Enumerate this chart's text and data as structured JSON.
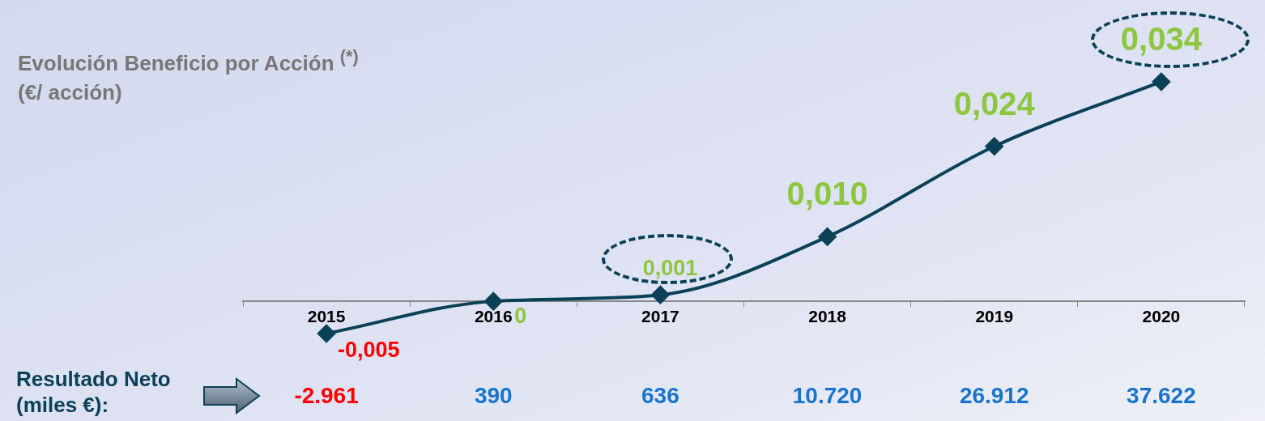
{
  "chart_data": {
    "type": "line",
    "title": "Evolución Beneficio por Acción $^{(*)}$",
    "subtitle": "(€/ acción)",
    "categories": [
      "2015",
      "2016",
      "2017",
      "2018",
      "2019",
      "2020"
    ],
    "series": [
      {
        "color": "#0b4157",
        "values": [
          -0.005,
          0,
          0.001,
          0.01,
          0.024,
          0.034
        ],
        "value_labels": [
          "-0,005",
          "0",
          "0,001",
          "0,010",
          "0,024",
          "0,034"
        ]
      }
    ],
    "grid": false,
    "legend": false,
    "marker": "diamond",
    "line_style": "solid",
    "annotations": [
      "Resultado Neto (miles €):",
      "-2.961",
      "390",
      "636",
      "10.720",
      "26.912",
      "37.622"
    ]
  }
}
